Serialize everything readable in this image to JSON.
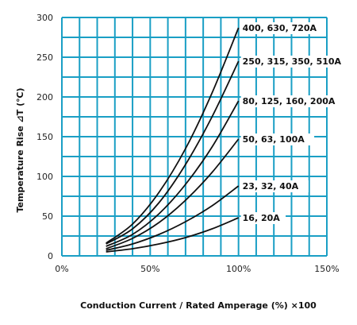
{
  "chart_data": {
    "type": "line",
    "title": "",
    "xlabel": "Conduction Current / Rated Amperage (%) ×100",
    "ylabel": "Temperature Rise ⊿T (℃)",
    "xlim": [
      0,
      150
    ],
    "ylim": [
      0,
      300
    ],
    "x_ticks": [
      "0%",
      "50%",
      "100%",
      "150%"
    ],
    "y_ticks": [
      "0",
      "50",
      "100",
      "150",
      "200",
      "250",
      "300"
    ],
    "grid": true,
    "colors": {
      "grid": "#1a9fc5",
      "curves": "#111111"
    },
    "series": [
      {
        "name": "16, 20A",
        "x": [
          25,
          40,
          55,
          70,
          85,
          100
        ],
        "y": [
          5,
          9,
          15,
          23,
          34,
          48
        ]
      },
      {
        "name": "23, 32, 40A",
        "x": [
          25,
          40,
          55,
          70,
          85,
          100
        ],
        "y": [
          7,
          15,
          27,
          43,
          63,
          88
        ]
      },
      {
        "name": "50, 63, 100A",
        "x": [
          25,
          40,
          55,
          70,
          85,
          100
        ],
        "y": [
          9,
          22,
          42,
          70,
          105,
          147
        ]
      },
      {
        "name": "80, 125, 160, 200A",
        "x": [
          25,
          40,
          55,
          70,
          85,
          100
        ],
        "y": [
          12,
          27,
          53,
          90,
          137,
          195
        ]
      },
      {
        "name": "250, 315, 350, 510A",
        "x": [
          25,
          40,
          55,
          70,
          85,
          100
        ],
        "y": [
          15,
          34,
          67,
          115,
          175,
          245
        ]
      },
      {
        "name": "400, 630, 720A",
        "x": [
          25,
          40,
          55,
          70,
          85,
          100
        ],
        "y": [
          16,
          40,
          80,
          135,
          205,
          287
        ]
      }
    ]
  }
}
